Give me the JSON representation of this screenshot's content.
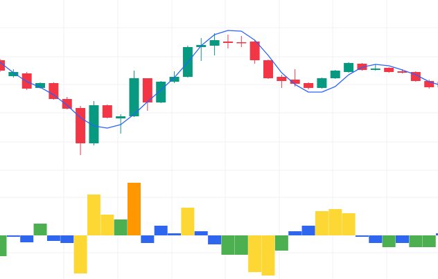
{
  "chart_data": [
    {
      "type": "candlestick",
      "up_color": "#089981",
      "down_color": "#f23645",
      "ylim": [
        0,
        245
      ],
      "open": [
        158,
        135,
        139,
        118,
        125,
        102,
        89,
        38,
        93,
        74,
        77,
        132,
        97,
        127,
        134,
        177,
        179,
        185,
        184,
        185,
        158,
        134,
        130,
        125,
        118,
        132,
        141,
        153,
        144,
        147,
        142,
        141,
        128,
        127
      ],
      "high": [
        160,
        145,
        141,
        126,
        126,
        105,
        92,
        99,
        94,
        80,
        143,
        132,
        128,
        142,
        179,
        190,
        197,
        195,
        193,
        187,
        159,
        137,
        145,
        126,
        133,
        144,
        155,
        154,
        152,
        148,
        145,
        142,
        130,
        128
      ],
      "low": [
        141,
        133,
        115,
        117,
        101,
        87,
        21,
        35,
        74,
        52,
        76,
        85,
        96,
        125,
        133,
        157,
        165,
        175,
        177,
        153,
        131,
        118,
        120,
        116,
        117,
        131,
        140,
        143,
        143,
        140,
        139,
        127,
        117,
        118
      ],
      "close": [
        143,
        141,
        117,
        125,
        102,
        88,
        38,
        93,
        75,
        77,
        132,
        97,
        127,
        134,
        177,
        180,
        187,
        183,
        183,
        158,
        132,
        128,
        124,
        118,
        132,
        143,
        154,
        144,
        146,
        141,
        140,
        128,
        119,
        119
      ],
      "series": [
        {
          "color": "#2962ff",
          "values": [
            155,
            140,
            127,
            119,
            108,
            93,
            75,
            63,
            60,
            65,
            80,
            98,
            115,
            133,
            155,
            179,
            195,
            201,
            200,
            187,
            165,
            140,
            123,
            112,
            112,
            120,
            137,
            148,
            152,
            150,
            144,
            137,
            127,
            121
          ]
        }
      ]
    },
    {
      "type": "bar",
      "ylim": [
        -63,
        93
      ],
      "values": [
        -30,
        -2,
        -10,
        17,
        -8,
        -11,
        -55,
        59,
        30,
        23,
        76,
        -11,
        14,
        3,
        40,
        6,
        -13,
        -28,
        -28,
        -53,
        -58,
        -22,
        6,
        14,
        35,
        38,
        32,
        -2,
        -11,
        -17,
        -11,
        -17,
        -17,
        3
      ],
      "colors": [
        "#4caf50",
        "#2f66f0",
        "#2f66f0",
        "#4caf50",
        "#2f66f0",
        "#2f66f0",
        "#fdd835",
        "#fdd835",
        "#fdd835",
        "#4caf50",
        "#ff9800",
        "#2f66f0",
        "#2f66f0",
        "#2f66f0",
        "#fdd835",
        "#2f66f0",
        "#2f66f0",
        "#4caf50",
        "#4caf50",
        "#fdd835",
        "#fdd835",
        "#4caf50",
        "#2f66f0",
        "#2f66f0",
        "#fdd835",
        "#fdd835",
        "#fdd835",
        "#2f66f0",
        "#2f66f0",
        "#4caf50",
        "#2f66f0",
        "#4caf50",
        "#4caf50",
        "#2f66f0"
      ]
    }
  ]
}
